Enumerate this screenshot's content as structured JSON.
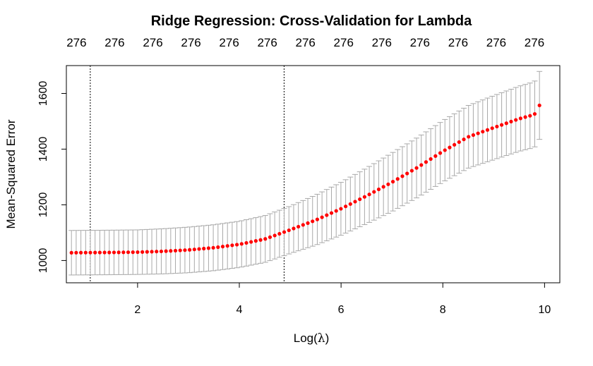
{
  "chart_data": {
    "type": "scatter",
    "title": "Ridge Regression: Cross-Validation for Lambda",
    "xlabel_prefix": "Log(",
    "xlabel_symbol": "λ",
    "xlabel_suffix": ")",
    "ylabel": "Mean-Squared Error",
    "xlim": [
      0.6,
      10.3
    ],
    "ylim": [
      920,
      1700
    ],
    "x_ticks": [
      2,
      4,
      6,
      8,
      10
    ],
    "y_ticks": [
      1000,
      1200,
      1400,
      1600
    ],
    "x_tick_labels": [
      "2",
      "4",
      "6",
      "8",
      "10"
    ],
    "y_tick_labels": [
      "1000",
      "1200",
      "1400",
      "1600"
    ],
    "top_axis_ticks": [
      0.8,
      1.55,
      2.3,
      3.05,
      3.8,
      4.55,
      5.3,
      6.05,
      6.8,
      7.55,
      8.3,
      9.05,
      9.8
    ],
    "top_axis_labels": [
      "276",
      "276",
      "276",
      "276",
      "276",
      "276",
      "276",
      "276",
      "276",
      "276",
      "276",
      "276",
      "276"
    ],
    "vlines_x": [
      1.07,
      4.88
    ],
    "n_points": 100,
    "x_range": [
      0.7,
      9.9
    ],
    "mse_curve_anchors": [
      [
        0.7,
        1028
      ],
      [
        1.5,
        1029
      ],
      [
        2.0,
        1030
      ],
      [
        2.5,
        1033
      ],
      [
        3.0,
        1038
      ],
      [
        3.5,
        1046
      ],
      [
        4.0,
        1058
      ],
      [
        4.5,
        1077
      ],
      [
        4.88,
        1102
      ],
      [
        5.5,
        1145
      ],
      [
        6.0,
        1186
      ],
      [
        6.5,
        1232
      ],
      [
        7.0,
        1281
      ],
      [
        7.5,
        1334
      ],
      [
        8.0,
        1392
      ],
      [
        8.5,
        1444
      ],
      [
        9.0,
        1477
      ],
      [
        9.5,
        1509
      ],
      [
        9.8,
        1524
      ],
      [
        9.9,
        1557
      ]
    ],
    "se_curve_anchors": [
      [
        0.7,
        80
      ],
      [
        2.0,
        80
      ],
      [
        3.0,
        82
      ],
      [
        4.0,
        83
      ],
      [
        5.0,
        85
      ],
      [
        6.0,
        95
      ],
      [
        7.0,
        105
      ],
      [
        8.0,
        110
      ],
      [
        9.0,
        115
      ],
      [
        9.8,
        118
      ],
      [
        9.9,
        122
      ]
    ],
    "colors": {
      "points": "#ff0000",
      "errorbars": "#a9a9a9",
      "axes": "#000000",
      "vlines": "#000000"
    }
  }
}
